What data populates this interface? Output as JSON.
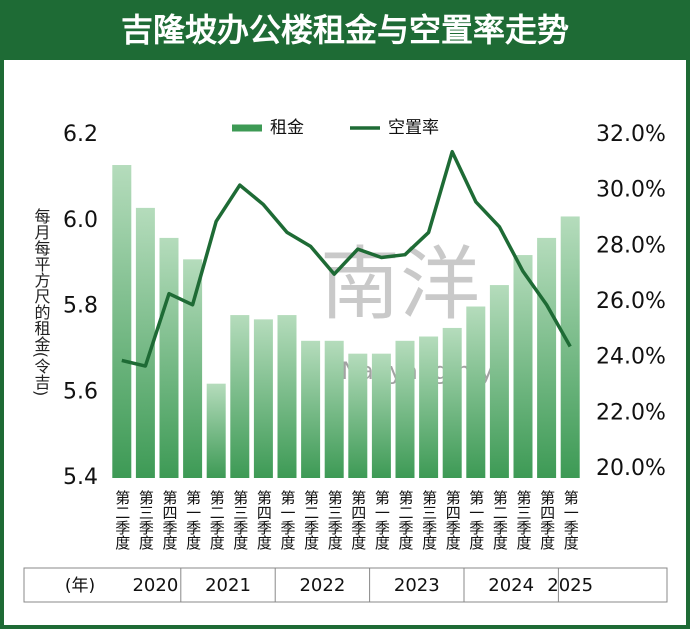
{
  "title": "吉隆坡办公楼租金与空置率走势",
  "watermark": [
    "南洋",
    "eNanyang.my"
  ],
  "chart_data": {
    "type": "bar_line",
    "y_label": "每月每平方尺的租金(令吉)",
    "year_unit": "(年)",
    "year_groups": [
      {
        "label": "2020",
        "quarters": [
          "第二季度",
          "第三季度",
          "第四季度"
        ]
      },
      {
        "label": "2021",
        "quarters": [
          "第一季度",
          "第二季度",
          "第三季度",
          "第四季度"
        ]
      },
      {
        "label": "2022",
        "quarters": [
          "第一季度",
          "第二季度",
          "第三季度",
          "第四季度"
        ]
      },
      {
        "label": "2023",
        "quarters": [
          "第一季度",
          "第二季度",
          "第三季度",
          "第四季度"
        ]
      },
      {
        "label": "2024",
        "quarters": [
          "第一季度",
          "第二季度",
          "第三季度",
          "第四季度"
        ]
      },
      {
        "label": "2025",
        "quarters": [
          "第一季度"
        ]
      }
    ],
    "series": [
      {
        "name": "租金",
        "color": "#3d9a55",
        "top_color": "#b5dcbc",
        "values": [
          6.13,
          6.03,
          5.96,
          5.91,
          5.62,
          5.78,
          5.77,
          5.78,
          5.72,
          5.72,
          5.69,
          5.69,
          5.72,
          5.73,
          5.75,
          5.8,
          5.85,
          5.92,
          5.96,
          6.01
        ]
      },
      {
        "name": "空置率",
        "color": "#1e6b35",
        "axis": "y2",
        "values": [
          23.9,
          23.7,
          26.3,
          25.9,
          28.9,
          30.2,
          29.5,
          28.5,
          28.0,
          27.0,
          27.9,
          27.6,
          27.7,
          28.5,
          31.4,
          29.6,
          28.7,
          27.1,
          25.9,
          24.4
        ]
      }
    ],
    "ylim": [
      5.4,
      6.2
    ],
    "yticks": [
      {
        "value": 5.4,
        "label": "5.4"
      },
      5.6,
      5.8,
      {
        "value": 6,
        "label": "6.0"
      },
      6.2
    ],
    "y2lim": [
      20,
      32
    ],
    "y2ticks": [
      {
        "value": 20,
        "label": "20.0%"
      },
      {
        "value": 22,
        "label": "22.0%"
      },
      {
        "value": 24,
        "label": "24.0%"
      },
      {
        "value": 26,
        "label": "26.0%"
      },
      {
        "value": 28,
        "label": "28.0%"
      },
      {
        "value": 30,
        "label": "30.0%"
      },
      {
        "value": 32,
        "label": "32.0%"
      }
    ]
  }
}
